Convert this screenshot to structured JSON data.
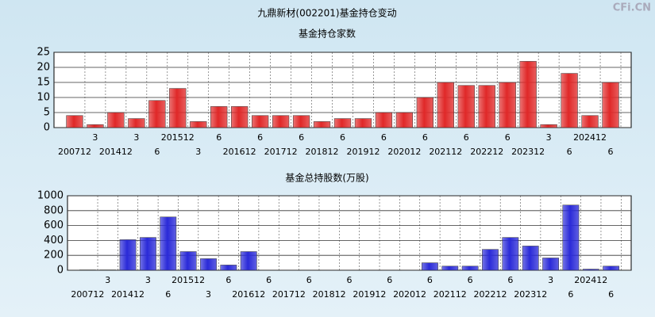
{
  "title": "九鼎新材(002201)基金持仓变动",
  "watermark": "CFi.CN",
  "chart_data": [
    {
      "type": "bar",
      "title": "基金持仓家数",
      "categories": [
        "200712",
        "3",
        "201412",
        "3",
        "6",
        "201512",
        "3",
        "6",
        "201612",
        "6",
        "201712",
        "6",
        "201812",
        "6",
        "201912",
        "6",
        "202012",
        "6",
        "202112",
        "6",
        "202212",
        "6",
        "202312",
        "3",
        "6",
        "202412",
        "6"
      ],
      "values": [
        4,
        1,
        5,
        3,
        9,
        13,
        2,
        7,
        7,
        4,
        4,
        4,
        2,
        3,
        3,
        5,
        5,
        10,
        15,
        14,
        14,
        15,
        22,
        1,
        18,
        4,
        15
      ],
      "color": "#e02828",
      "ylim": [
        0,
        25
      ],
      "yticks": [
        0,
        5,
        10,
        15,
        20,
        25
      ],
      "grid": true
    },
    {
      "type": "bar",
      "title": "基金总持股数(万股)",
      "categories": [
        "200712",
        "3",
        "201412",
        "3",
        "6",
        "201512",
        "3",
        "6",
        "201612",
        "6",
        "201712",
        "6",
        "201812",
        "6",
        "201912",
        "6",
        "202012",
        "6",
        "202112",
        "6",
        "202212",
        "6",
        "202312",
        "3",
        "6",
        "202412",
        "6"
      ],
      "values": [
        5,
        5,
        410,
        440,
        715,
        250,
        155,
        70,
        250,
        3,
        3,
        3,
        3,
        3,
        3,
        3,
        3,
        100,
        55,
        55,
        280,
        440,
        325,
        165,
        875,
        15,
        55
      ],
      "color": "#2a2ad8",
      "ylim": [
        0,
        1000
      ],
      "yticks": [
        0,
        200,
        400,
        600,
        800,
        1000
      ],
      "grid": true
    }
  ]
}
